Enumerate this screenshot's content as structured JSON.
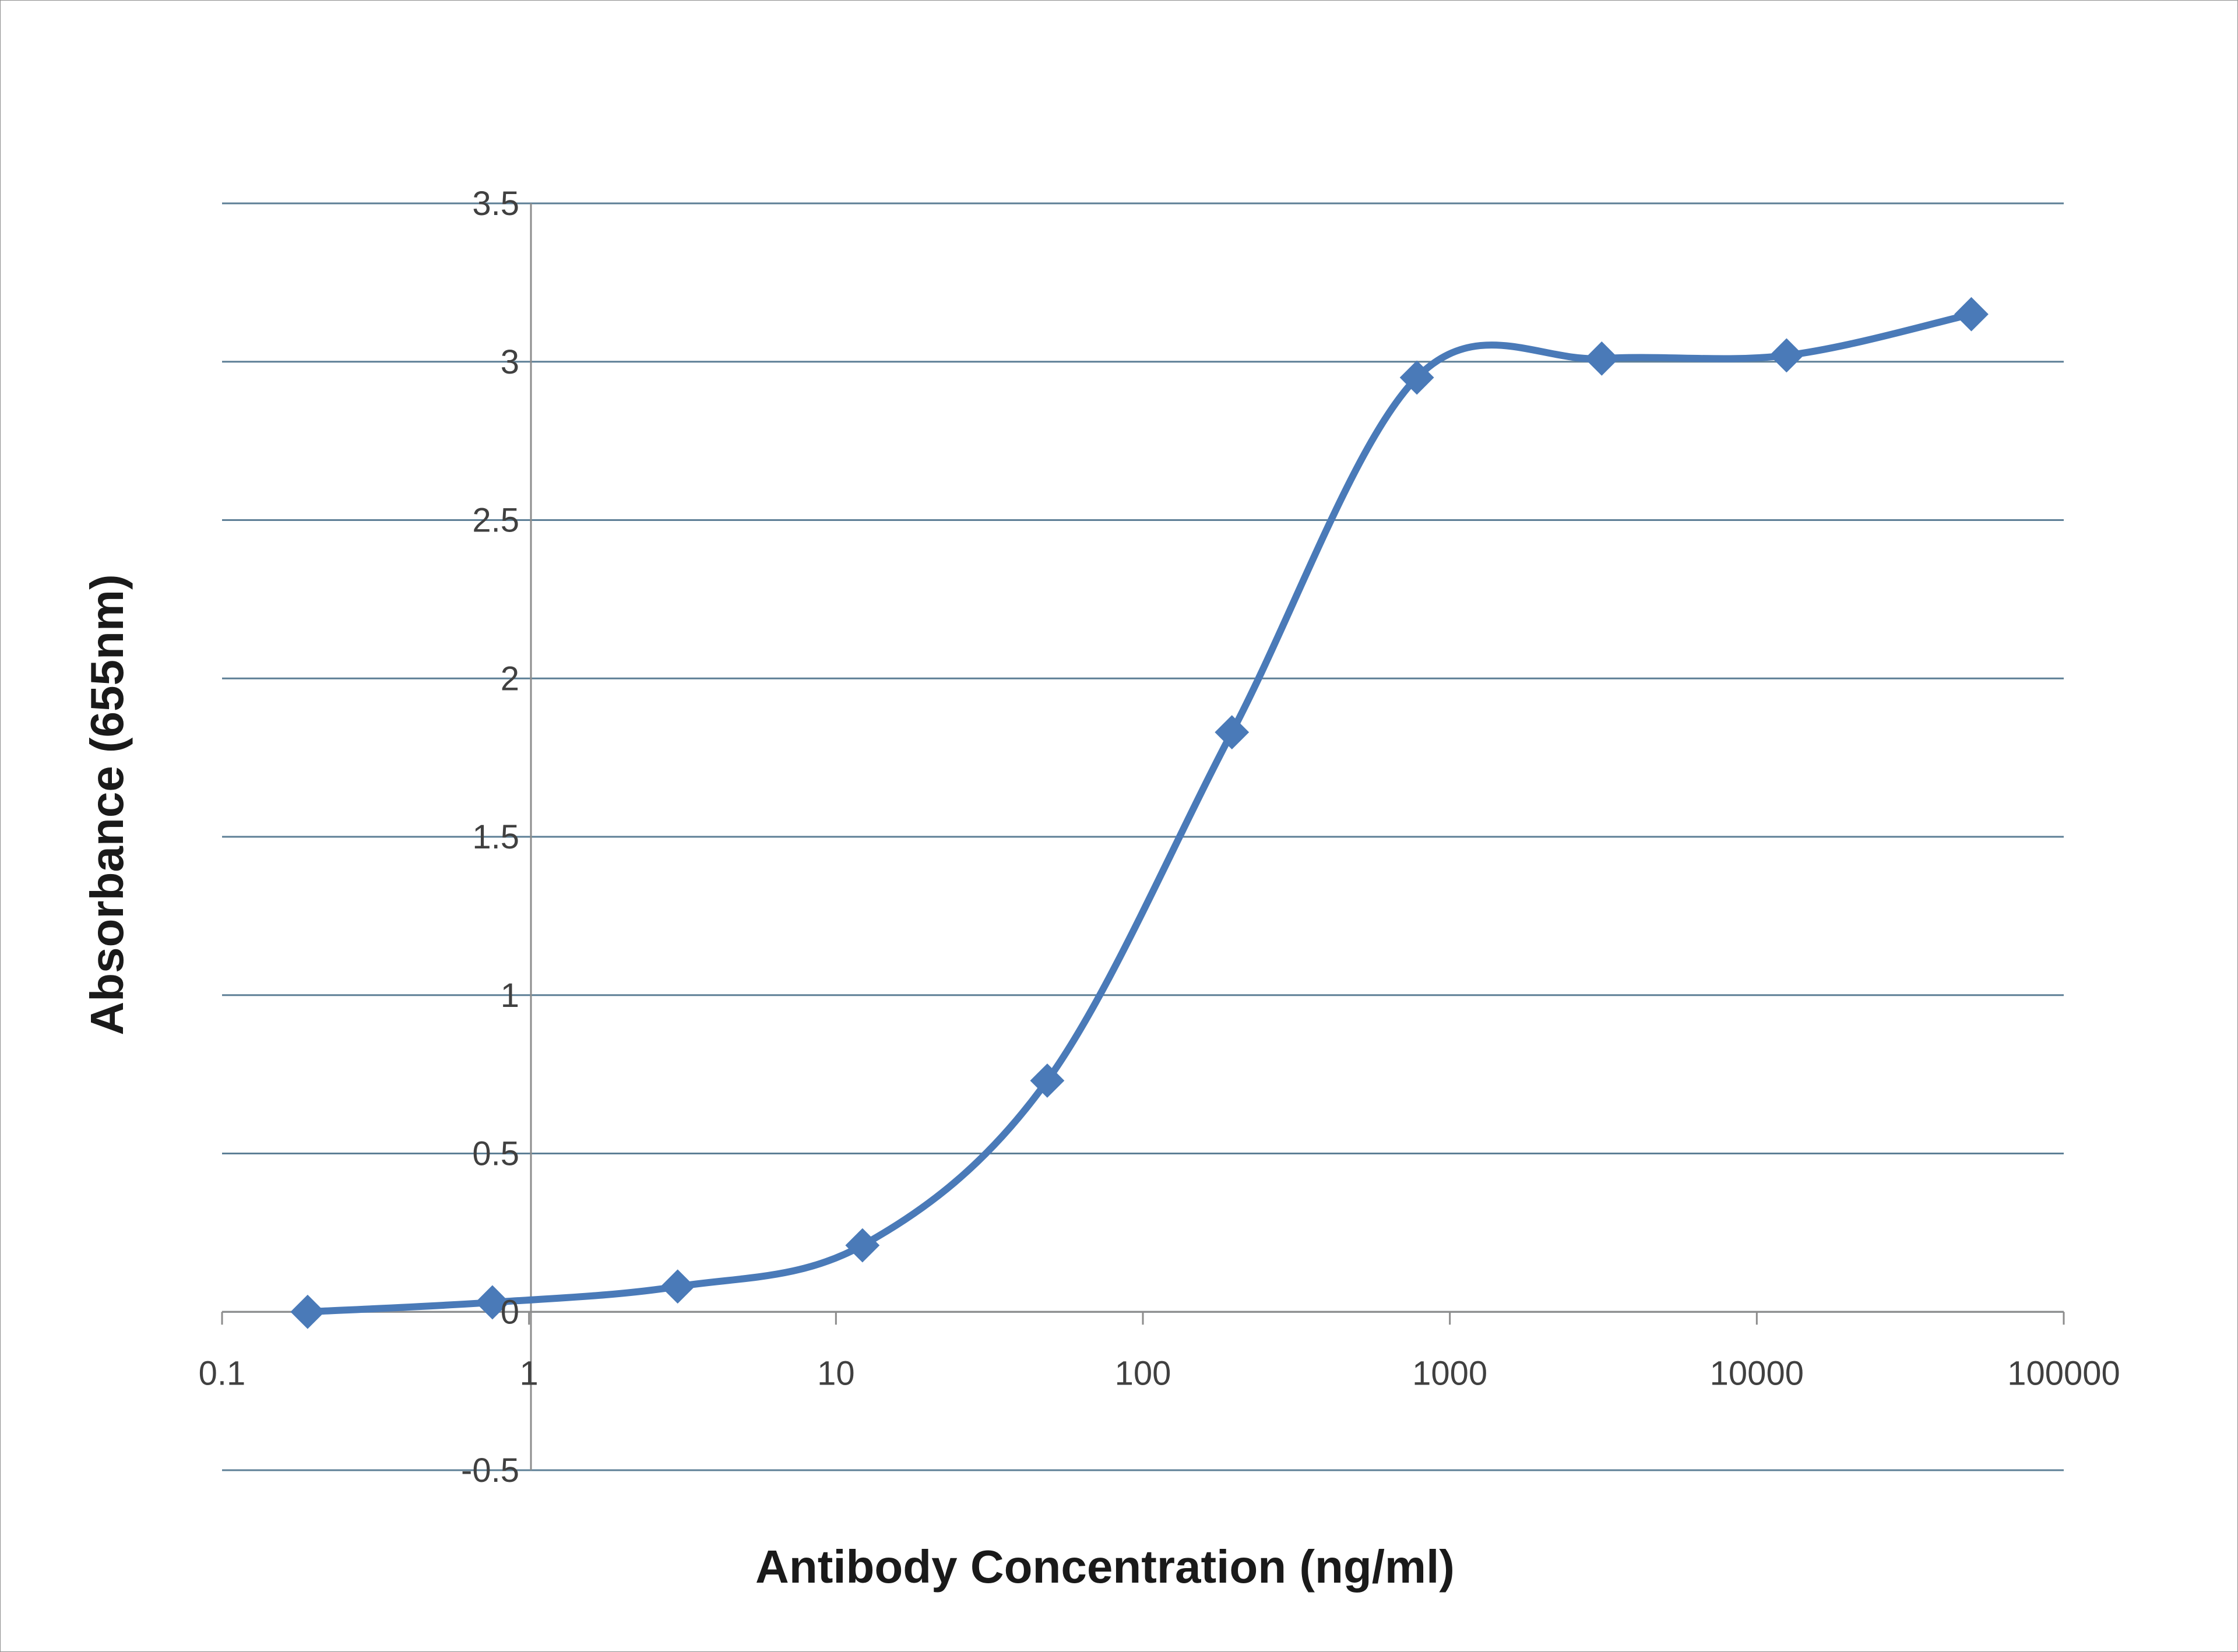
{
  "chart_data": {
    "type": "line",
    "title": "",
    "xlabel": "Antibody Concentration (ng/ml)",
    "ylabel": "Absorbance  (655nm)",
    "x_scale": "log",
    "xlim": [
      0.1,
      100000
    ],
    "ylim": [
      -0.5,
      3.5
    ],
    "x_ticks": [
      {
        "value": 0.1,
        "label": "0.1"
      },
      {
        "value": 1,
        "label": "1"
      },
      {
        "value": 10,
        "label": "10"
      },
      {
        "value": 100,
        "label": "100"
      },
      {
        "value": 1000,
        "label": "1000"
      },
      {
        "value": 10000,
        "label": "10000"
      },
      {
        "value": 100000,
        "label": "100000"
      }
    ],
    "y_ticks": [
      {
        "value": -0.5,
        "label": "-0.5"
      },
      {
        "value": 0,
        "label": "0"
      },
      {
        "value": 0.5,
        "label": "0.5"
      },
      {
        "value": 1,
        "label": "1"
      },
      {
        "value": 1.5,
        "label": "1.5"
      },
      {
        "value": 2,
        "label": "2"
      },
      {
        "value": 2.5,
        "label": "2.5"
      },
      {
        "value": 3,
        "label": "3"
      },
      {
        "value": 3.5,
        "label": "3.5"
      }
    ],
    "grid": {
      "horizontal": true,
      "vertical": false
    },
    "legend": "none",
    "line_color": "#4a7ab8",
    "gridline_color": "#5d7f96",
    "series": [
      {
        "x": [
          0.19,
          0.76,
          3.05,
          12.2,
          48.8,
          195,
          781,
          3125,
          12500,
          50000
        ],
        "y": [
          0.0,
          0.03,
          0.08,
          0.21,
          0.73,
          1.83,
          2.95,
          3.01,
          3.02,
          3.15
        ]
      }
    ]
  }
}
